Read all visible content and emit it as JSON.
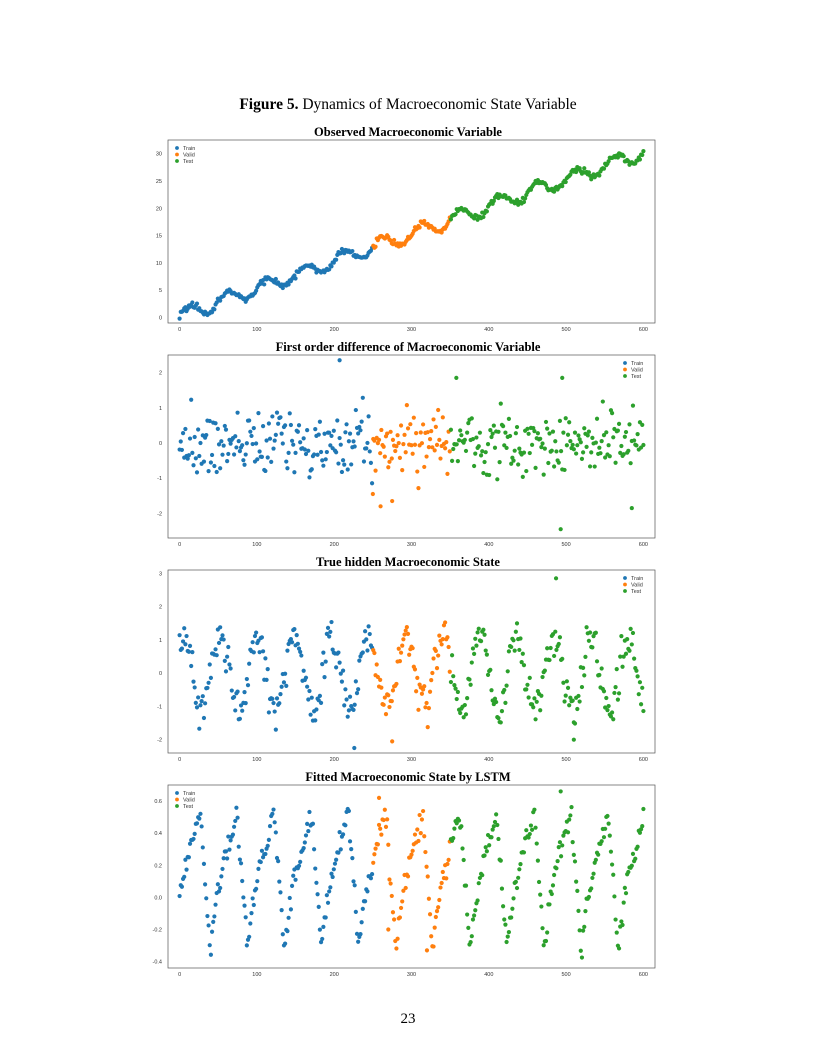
{
  "figure": {
    "label": "Figure 5.",
    "caption": "Dynamics of Macroeconomic State Variable"
  },
  "page_number": "23",
  "colors": {
    "train": "#1f77b4",
    "valid": "#ff7f0e",
    "test": "#2ca02c"
  },
  "chart_data": [
    {
      "type": "scatter",
      "title": "Observed Macroeconomic Variable",
      "xlim": [
        -15,
        615
      ],
      "ylim": [
        -1,
        32.5
      ],
      "xticks": [
        0,
        100,
        200,
        300,
        400,
        500,
        600
      ],
      "yticks": [
        0,
        5,
        10,
        15,
        20,
        25,
        30
      ],
      "legend_position": "top-left",
      "series": [
        {
          "name": "Train",
          "x_range": [
            0,
            250
          ],
          "color": "#1f77b4"
        },
        {
          "name": "Valid",
          "x_range": [
            250,
            350
          ],
          "color": "#ff7f0e"
        },
        {
          "name": "Test",
          "x_range": [
            350,
            600
          ],
          "color": "#2ca02c"
        }
      ],
      "pattern": {
        "kind": "trend_cycle",
        "slope": 0.05,
        "start": 0.3,
        "amplitude": 1.3,
        "period": 50,
        "noise": 0.45
      }
    },
    {
      "type": "scatter",
      "title": "First order difference of Macroeconomic Variable",
      "xlim": [
        -15,
        615
      ],
      "ylim": [
        -2.7,
        2.5
      ],
      "xticks": [
        0,
        100,
        200,
        300,
        400,
        500,
        600
      ],
      "yticks": [
        -2,
        -1,
        0,
        1,
        2
      ],
      "legend_position": "top-right",
      "series": [
        {
          "name": "Train",
          "x_range": [
            0,
            250
          ],
          "color": "#1f77b4"
        },
        {
          "name": "Valid",
          "x_range": [
            250,
            350
          ],
          "color": "#ff7f0e"
        },
        {
          "name": "Test",
          "x_range": [
            350,
            600
          ],
          "color": "#2ca02c"
        }
      ],
      "pattern": {
        "kind": "noise",
        "scale": 0.65
      },
      "highlights": [
        [
          207,
          2.35
        ],
        [
          493,
          -2.45
        ],
        [
          495,
          1.85
        ],
        [
          358,
          1.85
        ],
        [
          260,
          -1.8
        ],
        [
          585,
          -1.85
        ],
        [
          250,
          -1.45
        ],
        [
          275,
          -1.65
        ]
      ]
    },
    {
      "type": "scatter",
      "title": "True hidden Macroeconomic State",
      "xlim": [
        -15,
        615
      ],
      "ylim": [
        -2.4,
        3.1
      ],
      "xticks": [
        0,
        100,
        200,
        300,
        400,
        500,
        600
      ],
      "yticks": [
        -2,
        -1,
        0,
        1,
        2,
        3
      ],
      "legend_position": "top-right",
      "series": [
        {
          "name": "Train",
          "x_range": [
            0,
            250
          ],
          "color": "#1f77b4"
        },
        {
          "name": "Valid",
          "x_range": [
            250,
            350
          ],
          "color": "#ff7f0e"
        },
        {
          "name": "Test",
          "x_range": [
            350,
            600
          ],
          "color": "#2ca02c"
        }
      ],
      "pattern": {
        "kind": "cycle",
        "amplitude": 1.1,
        "period": 48,
        "phase": 1.0,
        "noise": 0.4
      },
      "highlights": [
        [
          487,
          2.85
        ],
        [
          510,
          -2.0
        ],
        [
          226,
          -2.25
        ],
        [
          275,
          -2.05
        ]
      ]
    },
    {
      "type": "scatter",
      "title": "Fitted Macroeconomic State by LSTM",
      "xlim": [
        -15,
        615
      ],
      "ylim": [
        -0.44,
        0.7
      ],
      "xticks": [
        0,
        100,
        200,
        300,
        400,
        500,
        600
      ],
      "yticks": [
        -0.4,
        -0.2,
        0.0,
        0.2,
        0.4,
        0.6
      ],
      "ytick_labels": [
        "-0.4",
        "-0.2",
        "0.0",
        "0.2",
        "0.4",
        "0.6"
      ],
      "legend_position": "top-left",
      "series": [
        {
          "name": "Train",
          "x_range": [
            0,
            250
          ],
          "color": "#1f77b4"
        },
        {
          "name": "Valid",
          "x_range": [
            250,
            350
          ],
          "color": "#ff7f0e"
        },
        {
          "name": "Test",
          "x_range": [
            350,
            600
          ],
          "color": "#2ca02c"
        }
      ],
      "pattern": {
        "kind": "sawtooth",
        "low": -0.37,
        "high": 0.52,
        "period": 48,
        "phase": -8,
        "noise": 0.05
      },
      "highlights": [
        [
          493,
          0.66
        ],
        [
          258,
          0.62
        ],
        [
          270,
          -0.2
        ],
        [
          320,
          -0.33
        ]
      ]
    }
  ]
}
